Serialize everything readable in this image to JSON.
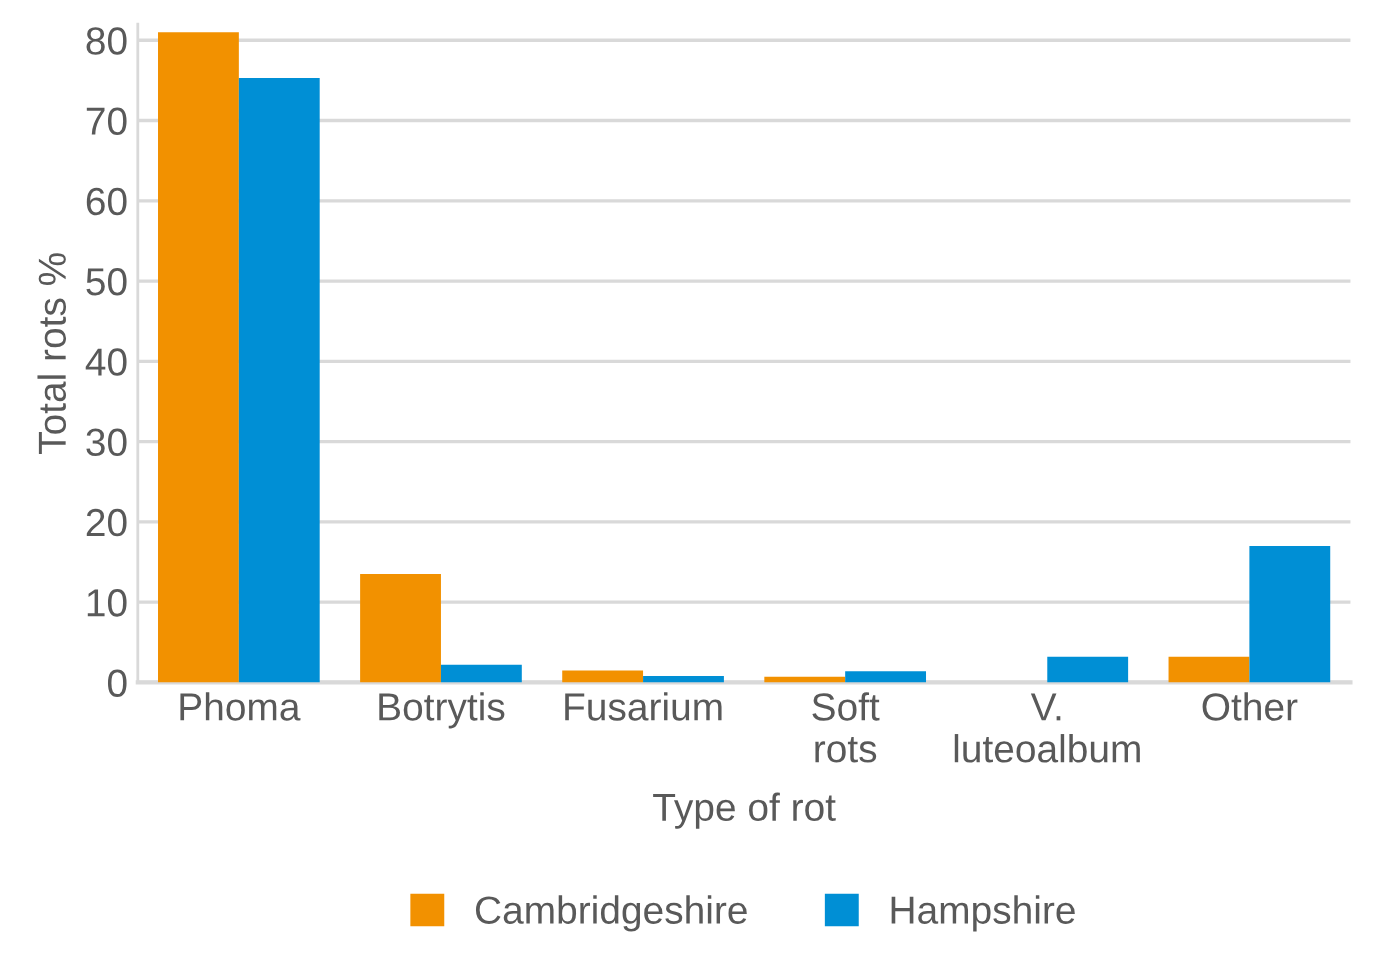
{
  "chart_data": {
    "type": "bar",
    "xlabel": "Type of rot",
    "ylabel": "Total rots %",
    "categories": [
      "Phoma",
      "Botrytis",
      "Fusarium",
      "Soft\nrots",
      "V.\nluteoalbum",
      "Other"
    ],
    "series": [
      {
        "name": "Cambridgeshire",
        "color": "#f29100",
        "values": [
          81,
          13.5,
          1.5,
          0.7,
          null,
          3.2
        ]
      },
      {
        "name": "Hampshire",
        "color": "#008fd5",
        "values": [
          75.3,
          2.2,
          0.8,
          1.4,
          3.2,
          17
        ]
      }
    ],
    "ylim": [
      0,
      82
    ],
    "yticks": [
      0,
      10,
      20,
      30,
      40,
      50,
      60,
      70,
      80
    ],
    "grid": "y",
    "legend": "bottom"
  }
}
